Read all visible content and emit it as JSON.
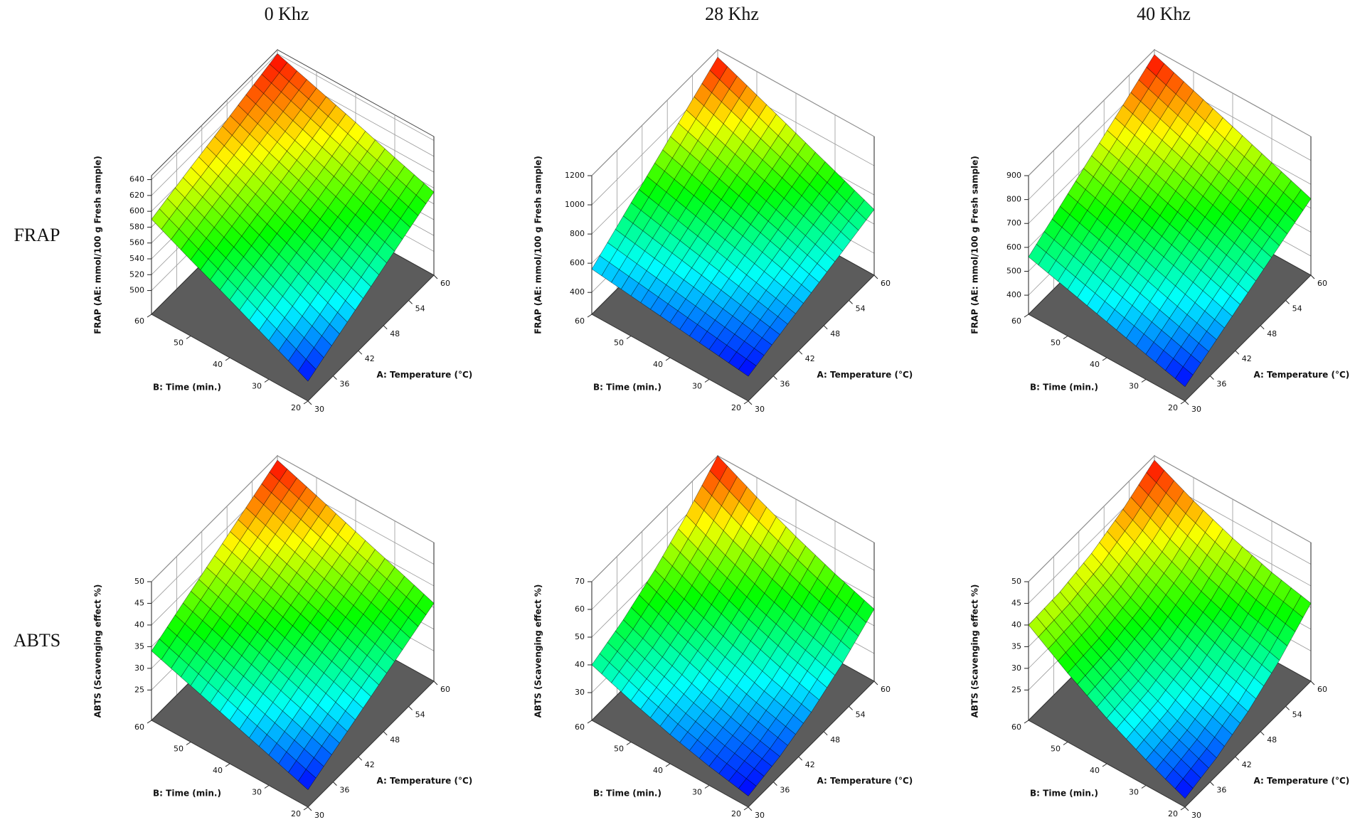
{
  "column_titles": [
    "0 Khz",
    "28 Khz",
    "40 Khz"
  ],
  "row_labels": [
    "FRAP",
    "ABTS"
  ],
  "chart_data": [
    {
      "type": "surface",
      "xlabel": "A: Temperature (°C)",
      "ylabel": "B: Time (min.)",
      "zlabel": "FRAP (AE: mmol/100 g Fresh sample)",
      "x": [
        30,
        37.5,
        45,
        52.5,
        60
      ],
      "y": [
        20,
        30,
        40,
        50,
        60
      ],
      "z": [
        [
          495,
          515,
          535,
          555,
          575
        ],
        [
          519,
          537,
          555,
          573,
          591
        ],
        [
          543,
          559,
          575,
          591,
          608
        ],
        [
          566,
          581,
          595,
          609,
          624
        ],
        [
          590,
          603,
          615,
          628,
          640
        ]
      ],
      "xlim": [
        30,
        60
      ],
      "ylim": [
        20,
        60
      ],
      "zlim": [
        470,
        645
      ],
      "xticks": [
        30,
        36,
        42,
        48,
        54,
        60
      ],
      "yticks": [
        20,
        30,
        40,
        50,
        60
      ],
      "zticks": [
        500,
        520,
        540,
        560,
        580,
        600,
        620,
        640
      ]
    },
    {
      "type": "surface",
      "xlabel": "A: Temperature (°C)",
      "ylabel": "B: Time (min.)",
      "zlabel": "FRAP (AE: mmol/100 g Fresh sample)",
      "x": [
        30,
        37.5,
        45,
        52.5,
        60
      ],
      "y": [
        20,
        30,
        40,
        50,
        60
      ],
      "z": [
        [
          420,
          490,
          560,
          630,
          700
        ],
        [
          455,
          544,
          634,
          723,
          813
        ],
        [
          490,
          599,
          708,
          816,
          925
        ],
        [
          525,
          653,
          781,
          909,
          1038
        ],
        [
          560,
          708,
          855,
          1003,
          1150
        ]
      ],
      "xlim": [
        30,
        60
      ],
      "ylim": [
        20,
        60
      ],
      "zlim": [
        250,
        1200
      ],
      "xticks": [
        30,
        36,
        42,
        48,
        54,
        60
      ],
      "yticks": [
        20,
        30,
        40,
        50,
        60
      ],
      "zticks": [
        400,
        600,
        800,
        1000,
        1200
      ]
    },
    {
      "type": "surface",
      "xlabel": "A: Temperature (°C)",
      "ylabel": "B: Time (min.)",
      "zlabel": "FRAP (AE: mmol/100 g Fresh sample)",
      "x": [
        30,
        37.5,
        45,
        52.5,
        60
      ],
      "y": [
        20,
        30,
        40,
        50,
        60
      ],
      "z": [
        [
          380,
          445,
          510,
          575,
          640
        ],
        [
          425,
          494,
          563,
          631,
          700
        ],
        [
          470,
          543,
          615,
          688,
          760
        ],
        [
          515,
          591,
          668,
          744,
          820
        ],
        [
          560,
          640,
          720,
          800,
          880
        ]
      ],
      "xlim": [
        30,
        60
      ],
      "ylim": [
        20,
        60
      ],
      "zlim": [
        320,
        900
      ],
      "xticks": [
        30,
        36,
        42,
        48,
        54,
        60
      ],
      "yticks": [
        20,
        30,
        40,
        50,
        60
      ],
      "zticks": [
        400,
        500,
        600,
        700,
        800,
        900
      ]
    },
    {
      "type": "surface",
      "xlabel": "A: Temperature (°C)",
      "ylabel": "B: Time (min.)",
      "zlabel": "ABTS (Scavenging effect %)",
      "x": [
        30,
        37.5,
        45,
        52.5,
        60
      ],
      "y": [
        20,
        30,
        40,
        50,
        60
      ],
      "z": [
        [
          22,
          25.5,
          29,
          32.5,
          36
        ],
        [
          25,
          28.6,
          32.1,
          35.7,
          39.3
        ],
        [
          28,
          31.6,
          35.3,
          38.9,
          42.5
        ],
        [
          31,
          34.7,
          38.4,
          42.1,
          45.8
        ],
        [
          34,
          37.8,
          41.5,
          45.3,
          49
        ]
      ],
      "xlim": [
        30,
        60
      ],
      "ylim": [
        20,
        60
      ],
      "zlim": [
        18,
        50
      ],
      "xticks": [
        30,
        36,
        42,
        48,
        54,
        60
      ],
      "yticks": [
        20,
        30,
        40,
        50,
        60
      ],
      "zticks": [
        25,
        30,
        35,
        40,
        45,
        50
      ]
    },
    {
      "type": "surface",
      "xlabel": "A: Temperature (°C)",
      "ylabel": "B: Time (min.)",
      "zlabel": "ABTS (Scavenging effect %)",
      "x": [
        30,
        37.5,
        45,
        52.5,
        60
      ],
      "y": [
        20,
        30,
        40,
        50,
        60
      ],
      "z": [
        [
          24,
          26.9,
          31.5,
          37.9,
          46
        ],
        [
          26.9,
          30.3,
          35.4,
          42.3,
          50.9
        ],
        [
          30.5,
          34.4,
          40,
          47.4,
          56.5
        ],
        [
          34.9,
          39.3,
          45.4,
          53.3,
          62.9
        ],
        [
          40,
          44.9,
          51.5,
          59.9,
          70
        ]
      ],
      "xlim": [
        30,
        60
      ],
      "ylim": [
        20,
        60
      ],
      "zlim": [
        20,
        70
      ],
      "xticks": [
        30,
        36,
        42,
        48,
        54,
        60
      ],
      "yticks": [
        20,
        30,
        40,
        50,
        60
      ],
      "zticks": [
        30,
        40,
        50,
        60,
        70
      ]
    },
    {
      "type": "surface",
      "xlabel": "A: Temperature (°C)",
      "ylabel": "B: Time (min.)",
      "zlabel": "ABTS (Scavenging effect %)",
      "x": [
        30,
        37.5,
        45,
        52.5,
        60
      ],
      "y": [
        20,
        30,
        40,
        50,
        60
      ],
      "z": [
        [
          20,
          22.1,
          25.5,
          30.1,
          36
        ],
        [
          23.9,
          25.6,
          28.5,
          32.7,
          38.1
        ],
        [
          28.5,
          29.8,
          32.3,
          36,
          41
        ],
        [
          33.9,
          34.7,
          36.8,
          40.1,
          44.6
        ],
        [
          40,
          40.4,
          42,
          44.9,
          49
        ]
      ],
      "xlim": [
        30,
        60
      ],
      "ylim": [
        20,
        60
      ],
      "zlim": [
        18,
        50
      ],
      "xticks": [
        30,
        36,
        42,
        48,
        54,
        60
      ],
      "yticks": [
        20,
        30,
        40,
        50,
        60
      ],
      "zticks": [
        25,
        30,
        35,
        40,
        45,
        50
      ]
    }
  ]
}
